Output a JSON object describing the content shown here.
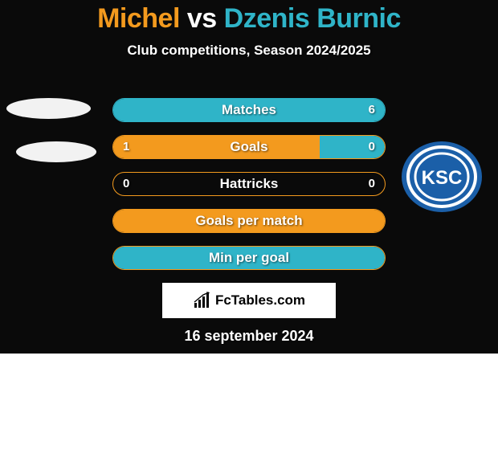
{
  "title": {
    "player1": "Michel",
    "vs": "vs",
    "player2": "Dzenis Burnic",
    "player1_color": "#f39a1e",
    "vs_color": "#ffffff",
    "player2_color": "#2fb4c8"
  },
  "subtitle": "Club competitions, Season 2024/2025",
  "colors": {
    "left": "#f39a1e",
    "right": "#2fb4c8",
    "bg_dark": "#0a0a0a"
  },
  "stats": [
    {
      "label": "Matches",
      "left_val": "",
      "right_val": "6",
      "left_pct": 0,
      "right_pct": 100,
      "border": "#2fb4c8"
    },
    {
      "label": "Goals",
      "left_val": "1",
      "right_val": "0",
      "left_pct": 76,
      "right_pct": 24,
      "border": "#f39a1e"
    },
    {
      "label": "Hattricks",
      "left_val": "0",
      "right_val": "0",
      "left_pct": 0,
      "right_pct": 0,
      "border": "#f39a1e"
    },
    {
      "label": "Goals per match",
      "left_val": "",
      "right_val": "",
      "left_pct": 100,
      "right_pct": 0,
      "border": "#f39a1e"
    },
    {
      "label": "Min per goal",
      "left_val": "",
      "right_val": "",
      "left_pct": 0,
      "right_pct": 100,
      "border": "#f39a1e"
    }
  ],
  "logo": "FcTables.com",
  "date": "16 september 2024",
  "ksc": {
    "label1": "KSC",
    "bg": "#1b5fa8",
    "ring": "#ffffff",
    "text": "#ffffff"
  }
}
